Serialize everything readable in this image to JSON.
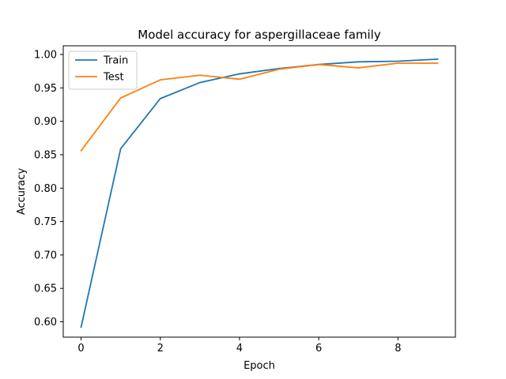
{
  "chart_data": {
    "type": "line",
    "title": "Model accuracy for aspergillaceae family",
    "xlabel": "Epoch",
    "ylabel": "Accuracy",
    "x": [
      0,
      1,
      2,
      3,
      4,
      5,
      6,
      7,
      8,
      9
    ],
    "xlim": [
      -0.45,
      9.45
    ],
    "ylim": [
      0.577,
      1.013
    ],
    "xticks": [
      0,
      2,
      4,
      6,
      8
    ],
    "yticks": [
      0.6,
      0.65,
      0.7,
      0.75,
      0.8,
      0.85,
      0.9,
      0.95,
      1.0
    ],
    "grid": false,
    "legend_position": "top-left",
    "series": [
      {
        "name": "Train",
        "color": "#1f77b4",
        "values": [
          0.592,
          0.859,
          0.934,
          0.958,
          0.971,
          0.979,
          0.985,
          0.989,
          0.99,
          0.993
        ]
      },
      {
        "name": "Test",
        "color": "#ff7f0e",
        "values": [
          0.856,
          0.935,
          0.962,
          0.969,
          0.963,
          0.978,
          0.985,
          0.98,
          0.987,
          0.987
        ]
      }
    ]
  }
}
